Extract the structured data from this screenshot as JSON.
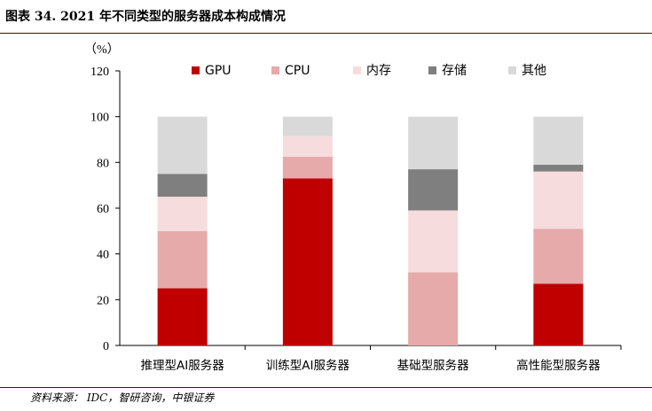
{
  "title": "图表 34. 2021 年不同类型的服务器成本构成情况",
  "source": "资料来源： IDC，智研咨询，中银证券",
  "chart_data": {
    "type": "bar",
    "stacked": true,
    "title": "图表 34. 2021 年不同类型的服务器成本构成情况",
    "xlabel": "",
    "ylabel": "（%）",
    "ylim": [
      0,
      120
    ],
    "yticks": [
      0,
      20,
      40,
      60,
      80,
      100,
      120
    ],
    "grid": false,
    "legend_position": "top",
    "categories": [
      "推理型AI服务器",
      "训练型AI服务器",
      "基础型服务器",
      "高性能型服务器"
    ],
    "series": [
      {
        "name": "GPU",
        "color": "#c00000",
        "values": [
          25,
          73,
          0,
          27
        ]
      },
      {
        "name": "CPU",
        "color": "#e6aaaa",
        "values": [
          25,
          9.5,
          32,
          24
        ]
      },
      {
        "name": "内存",
        "color": "#f6dcdc",
        "values": [
          15,
          9,
          27,
          25
        ]
      },
      {
        "name": "存储",
        "color": "#7f7f7f",
        "values": [
          10,
          0,
          18,
          3
        ]
      },
      {
        "name": "其他",
        "color": "#d9d9d9",
        "values": [
          25,
          8.5,
          23,
          21
        ]
      }
    ]
  }
}
